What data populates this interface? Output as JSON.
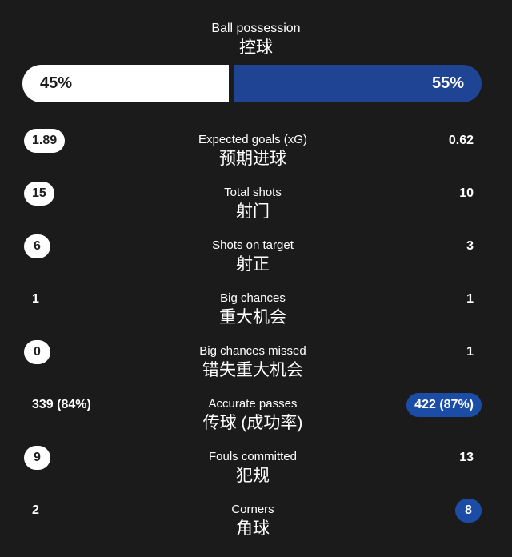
{
  "theme": {
    "background": "#1b1b1b",
    "bar_blue": "#1e4493",
    "pill_blue": "#1c4da6",
    "pill_white": "#ffffff",
    "text_light": "#ffffff",
    "text_dark": "#1d1d1d"
  },
  "possession": {
    "title_en": "Ball possession",
    "title_zh": "控球",
    "home_value": "45%",
    "away_value": "55%",
    "home_percent": 45,
    "away_percent": 55
  },
  "stats": [
    {
      "label_en": "Expected goals (xG)",
      "label_zh": "预期进球",
      "home": "1.89",
      "away": "0.62",
      "home_style": "pill-white",
      "away_style": "plain"
    },
    {
      "label_en": "Total shots",
      "label_zh": "射门",
      "home": "15",
      "away": "10",
      "home_style": "pill-white",
      "away_style": "plain"
    },
    {
      "label_en": "Shots on target",
      "label_zh": "射正",
      "home": "6",
      "away": "3",
      "home_style": "pill-white",
      "away_style": "plain"
    },
    {
      "label_en": "Big chances",
      "label_zh": "重大机会",
      "home": "1",
      "away": "1",
      "home_style": "plain",
      "away_style": "plain"
    },
    {
      "label_en": "Big chances missed",
      "label_zh": "错失重大机会",
      "home": "0",
      "away": "1",
      "home_style": "pill-white",
      "away_style": "plain"
    },
    {
      "label_en": "Accurate passes",
      "label_zh": "传球 (成功率)",
      "home": "339 (84%)",
      "away": "422 (87%)",
      "home_style": "plain",
      "away_style": "pill-blue"
    },
    {
      "label_en": "Fouls committed",
      "label_zh": "犯规",
      "home": "9",
      "away": "13",
      "home_style": "pill-white",
      "away_style": "plain"
    },
    {
      "label_en": "Corners",
      "label_zh": "角球",
      "home": "2",
      "away": "8",
      "home_style": "plain",
      "away_style": "pill-blue"
    }
  ]
}
